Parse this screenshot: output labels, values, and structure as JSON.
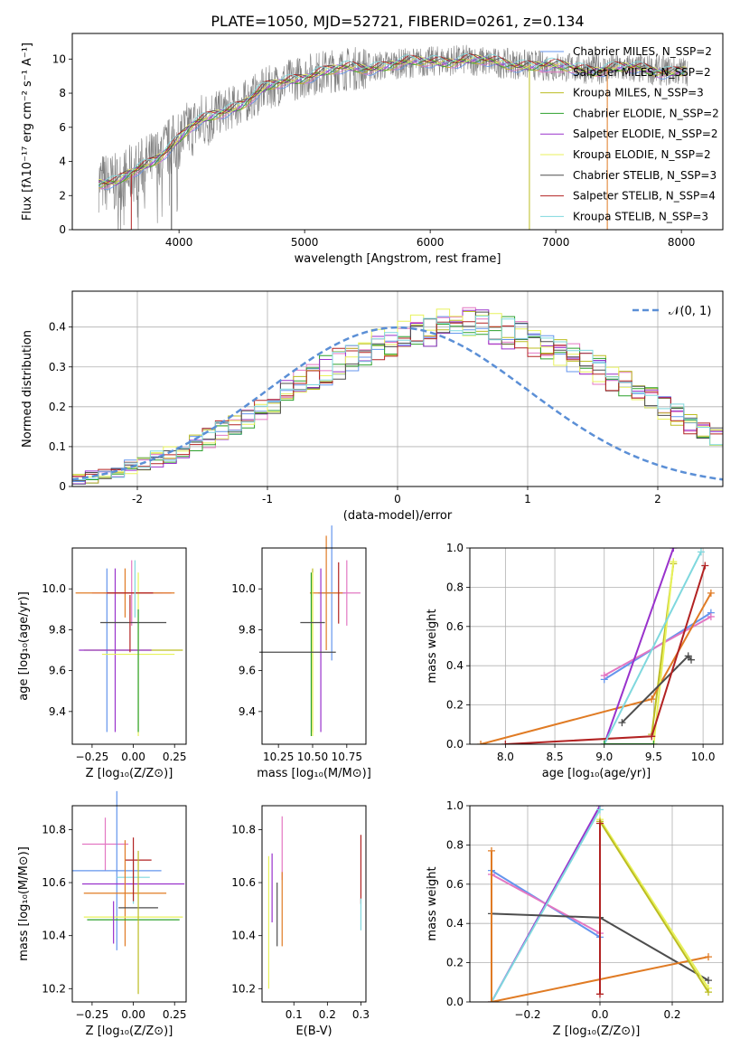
{
  "figure_title": "PLATE=1050, MJD=52721, FIBERID=0261, z=0.134",
  "colors": {
    "chabrier_miles": "#6495ed",
    "salpeter_miles": "#e377c2",
    "kroupa_miles": "#bcbd22",
    "chabrier_elodie": "#2ca02c",
    "salpeter_elodie": "#9932cc",
    "kroupa_elodie": "#e8f25c",
    "chabrier_stelib": "#4d4d4d",
    "salpeter_stelib": "#b22222",
    "kroupa_stelib": "#7fd8de",
    "orange": "#e07b24",
    "data": "#808080",
    "gauss": "#5b8fd6"
  },
  "chart_data": [
    {
      "id": "spectrum",
      "type": "line",
      "xlabel": "wavelength [Angstrom, rest frame]",
      "ylabel": "Flux [fλ10⁻¹⁷ erg cm⁻² s⁻¹ A⁻¹]",
      "xlim": [
        3150,
        8330
      ],
      "ylim": [
        0,
        11.5
      ],
      "xticks": [
        4000,
        5000,
        6000,
        7000,
        8000
      ],
      "yticks": [
        0,
        2,
        4,
        6,
        8,
        10
      ],
      "legend_position": "right",
      "continuum": {
        "x": [
          3360,
          3500,
          3650,
          3800,
          3950,
          4100,
          4300,
          4500,
          4700,
          4900,
          5100,
          5300,
          5500,
          5700,
          5900,
          6100,
          6300,
          6500,
          6700,
          6900,
          7100,
          7300,
          7500,
          7700,
          7900,
          8050
        ],
        "y": [
          2.8,
          2.7,
          3.4,
          4.1,
          5.0,
          6.0,
          6.8,
          7.4,
          8.3,
          8.8,
          9.2,
          9.4,
          9.5,
          9.7,
          9.8,
          9.9,
          9.95,
          9.8,
          9.7,
          9.6,
          9.5,
          9.4,
          9.45,
          9.4,
          9.3,
          9.3
        ]
      },
      "series": [
        {
          "name": "Chabrier MILES, N_SSP=2",
          "color_key": "chabrier_miles"
        },
        {
          "name": "Salpeter MILES, N_SSP=2",
          "color_key": "salpeter_miles"
        },
        {
          "name": "Kroupa MILES, N_SSP=3",
          "color_key": "kroupa_miles"
        },
        {
          "name": "Chabrier ELODIE, N_SSP=2",
          "color_key": "chabrier_elodie"
        },
        {
          "name": "Salpeter ELODIE, N_SSP=2",
          "color_key": "salpeter_elodie"
        },
        {
          "name": "Kroupa ELODIE, N_SSP=2",
          "color_key": "kroupa_elodie"
        },
        {
          "name": "Chabrier STELIB, N_SSP=3",
          "color_key": "chabrier_stelib"
        },
        {
          "name": "Salpeter STELIB, N_SSP=4",
          "color_key": "salpeter_stelib"
        },
        {
          "name": "Kroupa STELIB, N_SSP=3",
          "color_key": "kroupa_stelib"
        }
      ]
    },
    {
      "id": "residuals",
      "type": "histogram",
      "xlabel": "(data-model)/error",
      "ylabel": "Normed distribution",
      "xlim": [
        -2.5,
        2.5
      ],
      "ylim": [
        0,
        0.49
      ],
      "xticks": [
        -2,
        -1,
        0,
        1,
        2
      ],
      "yticks": [
        0.0,
        0.1,
        0.2,
        0.3,
        0.4
      ],
      "grid": true,
      "bin_start": -2.5,
      "bin_width": 0.1,
      "base_values": [
        0.022,
        0.028,
        0.034,
        0.04,
        0.048,
        0.057,
        0.067,
        0.079,
        0.092,
        0.107,
        0.122,
        0.139,
        0.157,
        0.176,
        0.194,
        0.213,
        0.241,
        0.257,
        0.275,
        0.292,
        0.308,
        0.325,
        0.34,
        0.355,
        0.368,
        0.378,
        0.388,
        0.395,
        0.4,
        0.405,
        0.41,
        0.4,
        0.395,
        0.388,
        0.378,
        0.365,
        0.352,
        0.338,
        0.325,
        0.308,
        0.292,
        0.275,
        0.257,
        0.238,
        0.218,
        0.198,
        0.178,
        0.158,
        0.139,
        0.122,
        0.107,
        0.092,
        0.079,
        0.067,
        0.057,
        0.048,
        0.04,
        0.034,
        0.028,
        0.022
      ],
      "gauss_legend": "𝒩(0, 1)"
    },
    {
      "id": "age_vs_Z",
      "type": "errorbar",
      "xlabel": "Z [log₁₀(Z/Z⊙)]",
      "ylabel": "age  [log₁₀(age/yr)]",
      "xlim": [
        -0.37,
        0.32
      ],
      "ylim": [
        9.24,
        10.2
      ],
      "xticks": [
        -0.25,
        0.0,
        0.25
      ],
      "xticklabels": [
        "−0.25",
        "0.00",
        "0.25"
      ],
      "yticks": [
        9.4,
        9.6,
        9.8,
        10.0
      ],
      "yticklabels": [
        "9.4",
        "9.6",
        "9.8",
        "10.0"
      ],
      "points": [
        {
          "c": "chabrier_miles",
          "x": 0.0,
          "y": 9.98,
          "xe": 0.18,
          "ye": 0.0
        },
        {
          "c": "chabrier_miles",
          "x": -0.16,
          "y": 9.7,
          "xe": 0.0,
          "ye": 0.4
        },
        {
          "c": "salpeter_miles",
          "x": -0.01,
          "y": 9.98,
          "xe": 0.24,
          "ye": 0.16
        },
        {
          "c": "kroupa_miles",
          "x": 0.0,
          "y": 9.7,
          "xe": 0.3,
          "ye": 0.0
        },
        {
          "c": "orange",
          "x": -0.05,
          "y": 9.98,
          "xe": 0.3,
          "ye": 0.12
        },
        {
          "c": "salpeter_elodie",
          "x": -0.11,
          "y": 9.7,
          "xe": 0.22,
          "ye": 0.4
        },
        {
          "c": "kroupa_elodie",
          "x": 0.03,
          "y": 9.68,
          "xe": 0.22,
          "ye": 0.4
        },
        {
          "c": "chabrier_stelib",
          "x": 0.0,
          "y": 9.835,
          "xe": 0.2,
          "ye": 0.0
        },
        {
          "c": "salpeter_stelib",
          "x": -0.02,
          "y": 9.98,
          "xe": 0.14,
          "ye": 0.0
        },
        {
          "c": "salpeter_stelib",
          "x": -0.02,
          "y": 9.83,
          "xe": 0.0,
          "ye": 0.14
        },
        {
          "c": "kroupa_stelib",
          "x": 0.01,
          "y": 10.0,
          "xe": 0.0,
          "ye": 0.14
        },
        {
          "c": "chabrier_elodie",
          "x": 0.03,
          "y": 9.6,
          "xe": 0.0,
          "ye": 0.3
        }
      ]
    },
    {
      "id": "age_vs_mass",
      "type": "errorbar",
      "xlabel": "mass [log₁₀(M/M⊙)]",
      "xlim": [
        10.13,
        10.89
      ],
      "ylim": [
        9.24,
        10.2
      ],
      "xticks": [
        10.25,
        10.5,
        10.75
      ],
      "xticklabels": [
        "10.25",
        "10.50",
        "10.75"
      ],
      "yticks": [
        9.4,
        9.6,
        9.8,
        10.0
      ],
      "yticklabels": [
        "9.4",
        "9.6",
        "9.8",
        "10.0"
      ],
      "points": [
        {
          "c": "chabrier_miles",
          "x": 10.64,
          "y": 9.98,
          "xe": 0.1,
          "ye": 0.33
        },
        {
          "c": "salpeter_miles",
          "x": 10.75,
          "y": 9.98,
          "xe": 0.1,
          "ye": 0.16
        },
        {
          "c": "kroupa_miles",
          "x": 10.5,
          "y": 9.7,
          "xe": 0.0,
          "ye": 0.4
        },
        {
          "c": "orange",
          "x": 10.6,
          "y": 9.98,
          "xe": 0.12,
          "ye": 0.28
        },
        {
          "c": "salpeter_elodie",
          "x": 10.56,
          "y": 9.7,
          "xe": 0.0,
          "ye": 0.4
        },
        {
          "c": "chabrier_elodie",
          "x": 10.49,
          "y": 9.68,
          "xe": 0.0,
          "ye": 0.4
        },
        {
          "c": "kroupa_elodie",
          "x": 10.5,
          "y": 9.68,
          "xe": 0.0,
          "ye": 0.4
        },
        {
          "c": "chabrier_stelib",
          "x": 10.5,
          "y": 9.835,
          "xe": 0.09,
          "ye": 0.0
        },
        {
          "c": "salpeter_stelib",
          "x": 10.69,
          "y": 9.98,
          "xe": 0.0,
          "ye": 0.15
        },
        {
          "c": "chabrier_stelib",
          "x": 10.39,
          "y": 9.69,
          "xe": 0.28,
          "ye": 0.0
        },
        {
          "c": "kroupa_stelib",
          "x": 10.6,
          "y": 9.69,
          "xe": 0.0,
          "ye": 0.0
        }
      ]
    },
    {
      "id": "weight_vs_age",
      "type": "line",
      "xlabel": "age  [log₁₀(age/yr)]",
      "ylabel": "mass weight",
      "xlim": [
        7.64,
        10.2
      ],
      "ylim": [
        0.0,
        1.0
      ],
      "xticks": [
        8.0,
        8.5,
        9.0,
        9.5,
        10.0
      ],
      "xticklabels": [
        "8.0",
        "8.5",
        "9.0",
        "9.5",
        "10.0"
      ],
      "yticks": [
        0.0,
        0.2,
        0.4,
        0.6,
        0.8,
        1.0
      ],
      "yticklabels": [
        "0.0",
        "0.2",
        "0.4",
        "0.6",
        "0.8",
        "1.0"
      ],
      "grid": true,
      "series": [
        {
          "c": "chabrier_miles",
          "x": [
            9.0,
            10.08
          ],
          "y": [
            0.33,
            0.67
          ]
        },
        {
          "c": "salpeter_miles",
          "x": [
            9.0,
            10.08
          ],
          "y": [
            0.35,
            0.65
          ]
        },
        {
          "c": "kroupa_miles",
          "x": [
            9.48,
            9.7
          ],
          "y": [
            0.05,
            0.92
          ]
        },
        {
          "c": "orange",
          "x": [
            7.75,
            9.48,
            10.08
          ],
          "y": [
            0.0,
            0.23,
            0.77
          ]
        },
        {
          "c": "salpeter_elodie",
          "x": [
            9.0,
            9.7
          ],
          "y": [
            0.0,
            1.0
          ]
        },
        {
          "c": "kroupa_elodie",
          "x": [
            9.5,
            9.7
          ],
          "y": [
            0.0,
            0.93
          ]
        },
        {
          "c": "chabrier_stelib",
          "x": [
            9.18,
            9.85,
            9.88
          ],
          "y": [
            0.11,
            0.45,
            0.43
          ]
        },
        {
          "c": "salpeter_stelib",
          "x": [
            8.0,
            9.48,
            10.02
          ],
          "y": [
            0.0,
            0.04,
            0.91
          ]
        },
        {
          "c": "kroupa_stelib",
          "x": [
            9.0,
            9.98
          ],
          "y": [
            0.0,
            0.98
          ]
        },
        {
          "c": "chabrier_elodie",
          "x": [
            9.0,
            9.5
          ],
          "y": [
            0.0,
            0.0
          ]
        }
      ]
    },
    {
      "id": "mass_vs_Z",
      "type": "errorbar",
      "xlabel": "Z [log₁₀(Z/Z⊙)]",
      "ylabel": "mass [log₁₀(M/M⊙)]",
      "xlim": [
        -0.37,
        0.32
      ],
      "ylim": [
        10.15,
        10.89
      ],
      "xticks": [
        -0.25,
        0.0,
        0.25
      ],
      "xticklabels": [
        "−0.25",
        "0.00",
        "0.25"
      ],
      "yticks": [
        10.2,
        10.4,
        10.6,
        10.8
      ],
      "yticklabels": [
        "10.2",
        "10.4",
        "10.6",
        "10.8"
      ],
      "points": [
        {
          "c": "salpeter_miles",
          "x": -0.17,
          "y": 10.745,
          "xe": 0.14,
          "ye": 0.1
        },
        {
          "c": "chabrier_miles",
          "x": -0.1,
          "y": 10.645,
          "xe": 0.27,
          "ye": 0.3
        },
        {
          "c": "salpeter_stelib",
          "x": 0.03,
          "y": 10.685,
          "xe": 0.08,
          "ye": 0.0
        },
        {
          "c": "kroupa_stelib",
          "x": 0.0,
          "y": 10.62,
          "xe": 0.1,
          "ye": 0.1
        },
        {
          "c": "salpeter_elodie",
          "x": 0.0,
          "y": 10.595,
          "xe": 0.31,
          "ye": 0.0
        },
        {
          "c": "orange",
          "x": -0.05,
          "y": 10.56,
          "xe": 0.25,
          "ye": 0.2
        },
        {
          "c": "chabrier_stelib",
          "x": 0.03,
          "y": 10.505,
          "xe": 0.12,
          "ye": 0.0
        },
        {
          "c": "kroupa_elodie",
          "x": 0.0,
          "y": 10.47,
          "xe": 0.3,
          "ye": 0.0
        },
        {
          "c": "chabrier_elodie",
          "x": 0.0,
          "y": 10.46,
          "xe": 0.28,
          "ye": 0.0
        },
        {
          "c": "kroupa_miles",
          "x": 0.03,
          "y": 10.45,
          "xe": 0.0,
          "ye": 0.27
        },
        {
          "c": "salpeter_stelib",
          "x": 0.0,
          "y": 10.65,
          "xe": 0.0,
          "ye": 0.12
        },
        {
          "c": "salpeter_elodie",
          "x": -0.12,
          "y": 10.45,
          "xe": 0.0,
          "ye": 0.08
        }
      ]
    },
    {
      "id": "mass_vs_ebv",
      "type": "errorbar",
      "xlabel": "E(B-V)",
      "xlim": [
        0.005,
        0.315
      ],
      "ylim": [
        10.15,
        10.89
      ],
      "xticks": [
        0.1,
        0.2,
        0.3
      ],
      "xticklabels": [
        "0.1",
        "0.2",
        "0.3"
      ],
      "yticks": [
        10.2,
        10.4,
        10.6,
        10.8
      ],
      "yticklabels": [
        "10.2",
        "10.4",
        "10.6",
        "10.8"
      ],
      "points": [
        {
          "c": "kroupa_elodie",
          "x": 0.025,
          "y": 10.45,
          "xe": 0.0,
          "ye": 0.25
        },
        {
          "c": "salpeter_elodie",
          "x": 0.035,
          "y": 10.58,
          "xe": 0.0,
          "ye": 0.13
        },
        {
          "c": "chabrier_stelib",
          "x": 0.05,
          "y": 10.48,
          "xe": 0.0,
          "ye": 0.12
        },
        {
          "c": "salpeter_miles",
          "x": 0.065,
          "y": 10.73,
          "xe": 0.0,
          "ye": 0.12
        },
        {
          "c": "orange",
          "x": 0.065,
          "y": 10.5,
          "xe": 0.0,
          "ye": 0.14
        },
        {
          "c": "salpeter_stelib",
          "x": 0.3,
          "y": 10.65,
          "xe": 0.0,
          "ye": 0.13
        },
        {
          "c": "kroupa_stelib",
          "x": 0.3,
          "y": 10.48,
          "xe": 0.0,
          "ye": 0.06
        }
      ]
    },
    {
      "id": "weight_vs_Z",
      "type": "line",
      "xlabel": "Z [log₁₀(Z/Z⊙)]",
      "ylabel": "mass weight",
      "xlim": [
        -0.36,
        0.34
      ],
      "ylim": [
        0.0,
        1.0
      ],
      "xticks": [
        -0.2,
        0.0,
        0.2
      ],
      "xticklabels": [
        "−0.2",
        "0.0",
        "0.2"
      ],
      "yticks": [
        0.0,
        0.2,
        0.4,
        0.6,
        0.8,
        1.0
      ],
      "yticklabels": [
        "0.0",
        "0.2",
        "0.4",
        "0.6",
        "0.8",
        "1.0"
      ],
      "grid": true,
      "series": [
        {
          "c": "chabrier_miles",
          "x": [
            -0.3,
            0.0
          ],
          "y": [
            0.67,
            0.33
          ]
        },
        {
          "c": "salpeter_miles",
          "x": [
            -0.3,
            0.0
          ],
          "y": [
            0.65,
            0.35
          ]
        },
        {
          "c": "salpeter_elodie",
          "x": [
            -0.3,
            0.0
          ],
          "y": [
            0.0,
            1.0
          ]
        },
        {
          "c": "kroupa_stelib",
          "x": [
            -0.3,
            0.0
          ],
          "y": [
            0.0,
            0.98
          ]
        },
        {
          "c": "chabrier_stelib",
          "x": [
            -0.3,
            0.0,
            0.3
          ],
          "y": [
            0.45,
            0.43,
            0.11
          ]
        },
        {
          "c": "orange",
          "x": [
            -0.3,
            -0.3,
            0.3
          ],
          "y": [
            0.77,
            0.0,
            0.23
          ]
        },
        {
          "c": "kroupa_elodie",
          "x": [
            0.0,
            0.3
          ],
          "y": [
            0.93,
            0.07
          ]
        },
        {
          "c": "kroupa_miles",
          "x": [
            0.0,
            0.3
          ],
          "y": [
            0.92,
            0.05
          ]
        },
        {
          "c": "salpeter_stelib",
          "x": [
            0.0,
            0.0
          ],
          "y": [
            0.04,
            0.91
          ]
        }
      ]
    }
  ]
}
